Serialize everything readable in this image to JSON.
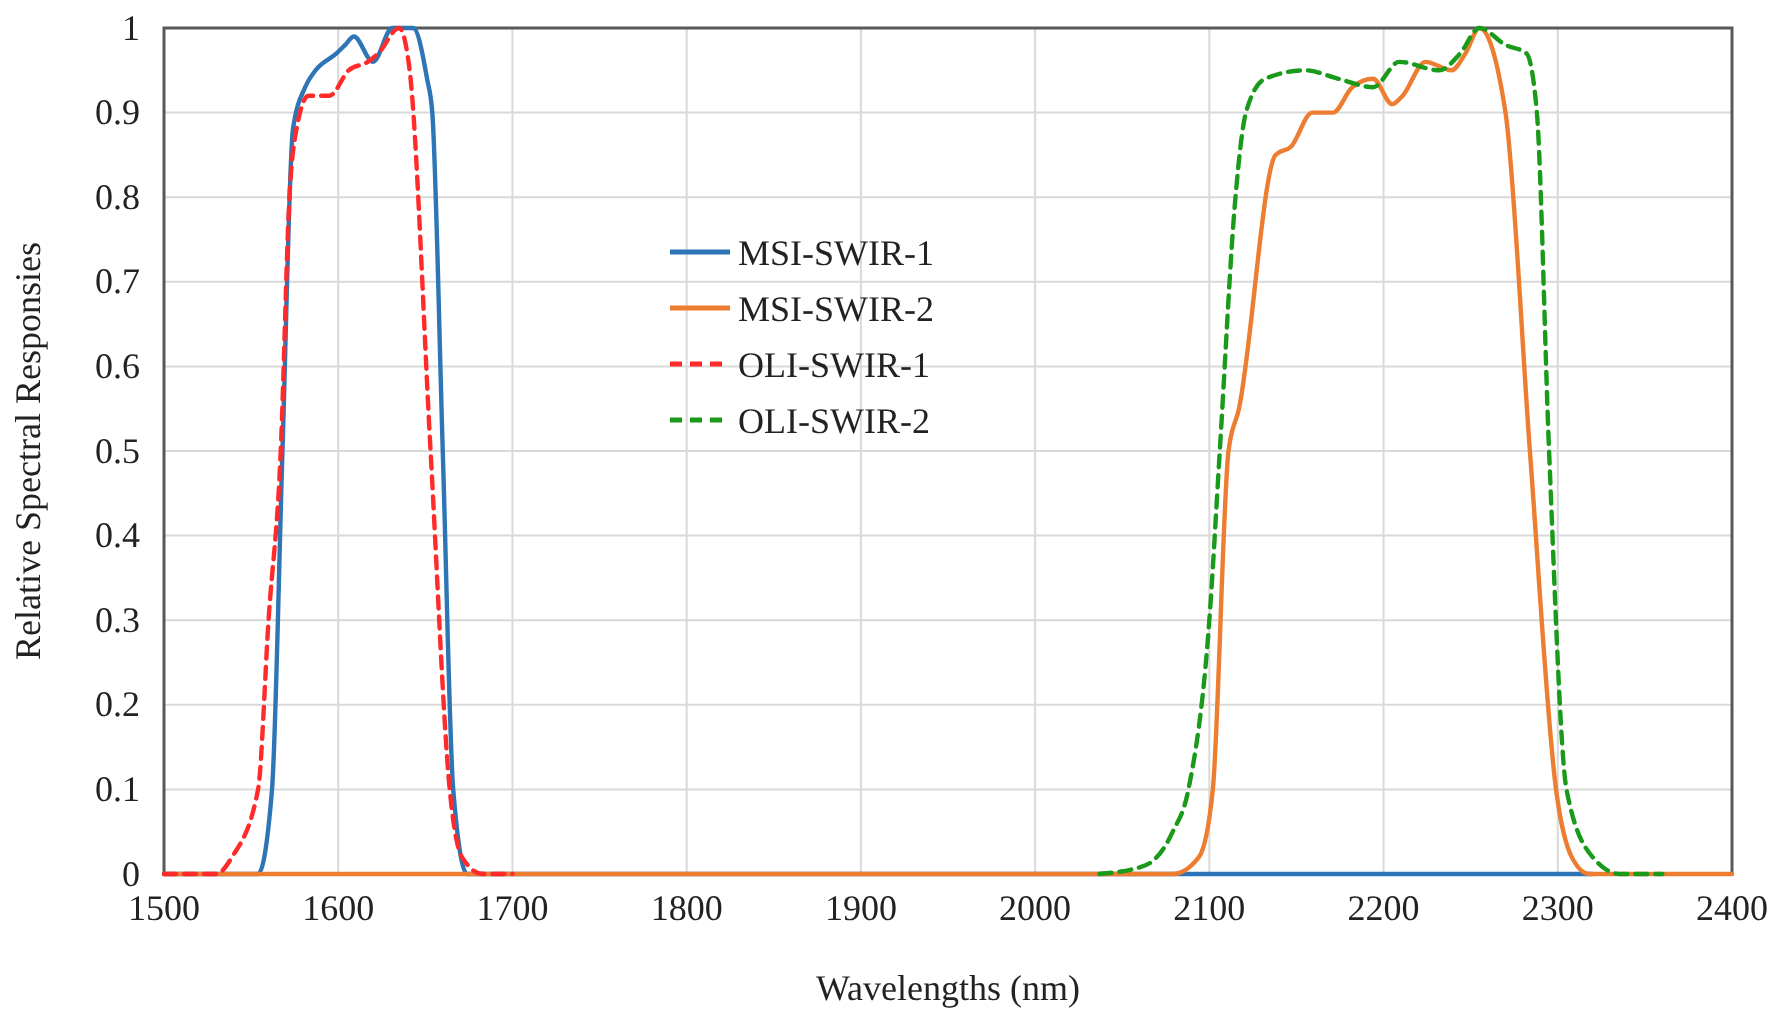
{
  "chart_data": {
    "type": "line",
    "xlabel": "Wavelengths (nm)",
    "ylabel": "Relative Spectral Responsies",
    "xlim": [
      1500,
      2400
    ],
    "ylim": [
      0,
      1
    ],
    "xticks": [
      1500,
      1600,
      1700,
      1800,
      1900,
      2000,
      2100,
      2200,
      2300,
      2400
    ],
    "yticks": [
      0,
      0.1,
      0.2,
      0.3,
      0.4,
      0.5,
      0.6,
      0.7,
      0.8,
      0.9,
      1
    ],
    "grid": true,
    "legend": "top",
    "marker": "none",
    "series": [
      {
        "name": "MSI-SWIR-1",
        "color": "#2e75b6",
        "line_style": "solid",
        "x": [
          1500,
          1554,
          1562,
          1568,
          1574,
          1581,
          1587,
          1599,
          1604,
          1609,
          1620,
          1631,
          1643,
          1651,
          1654,
          1660,
          1666,
          1674,
          2320
        ],
        "values": [
          0,
          0,
          0.1,
          0.5,
          0.88,
          0.93,
          0.95,
          0.97,
          0.98,
          0.99,
          0.96,
          1,
          1,
          0.94,
          0.9,
          0.5,
          0.1,
          0,
          0
        ]
      },
      {
        "name": "MSI-SWIR-2",
        "color": "#ed7d31",
        "line_style": "solid",
        "x": [
          1500,
          2079,
          2094,
          2102,
          2111,
          2117,
          2138,
          2147,
          2159,
          2171,
          2182,
          2194,
          2205,
          2211,
          2224,
          2239,
          2247,
          2255,
          2270,
          2284,
          2299,
          2308,
          2318,
          2400
        ],
        "values": [
          0,
          0,
          0.02,
          0.1,
          0.5,
          0.55,
          0.85,
          0.86,
          0.9,
          0.9,
          0.93,
          0.94,
          0.91,
          0.92,
          0.96,
          0.95,
          0.97,
          1,
          0.9,
          0.5,
          0.1,
          0.02,
          0,
          0
        ]
      },
      {
        "name": "OLI-SWIR-1",
        "color": "#ff2a2a",
        "line_style": "dashed",
        "x": [
          1500,
          1530,
          1539,
          1554,
          1560,
          1567,
          1572,
          1576,
          1583,
          1595,
          1606,
          1617,
          1623,
          1635,
          1641,
          1653,
          1664,
          1671,
          1683,
          1700
        ],
        "values": [
          0,
          0,
          0.02,
          0.1,
          0.3,
          0.5,
          0.8,
          0.88,
          0.92,
          0.92,
          0.95,
          0.96,
          0.97,
          1,
          0.95,
          0.5,
          0.1,
          0.02,
          0,
          0
        ]
      },
      {
        "name": "OLI-SWIR-2",
        "color": "#1a9a1a",
        "line_style": "dashed",
        "x": [
          2037,
          2063,
          2079,
          2088,
          2100,
          2106,
          2115,
          2121,
          2132,
          2155,
          2174,
          2194,
          2209,
          2232,
          2244,
          2255,
          2270,
          2282,
          2288,
          2295,
          2305,
          2320,
          2336,
          2360
        ],
        "values": [
          0,
          0.01,
          0.05,
          0.1,
          0.3,
          0.5,
          0.8,
          0.9,
          0.94,
          0.95,
          0.94,
          0.93,
          0.96,
          0.95,
          0.97,
          1,
          0.98,
          0.97,
          0.9,
          0.5,
          0.1,
          0.02,
          0,
          0
        ]
      }
    ]
  }
}
